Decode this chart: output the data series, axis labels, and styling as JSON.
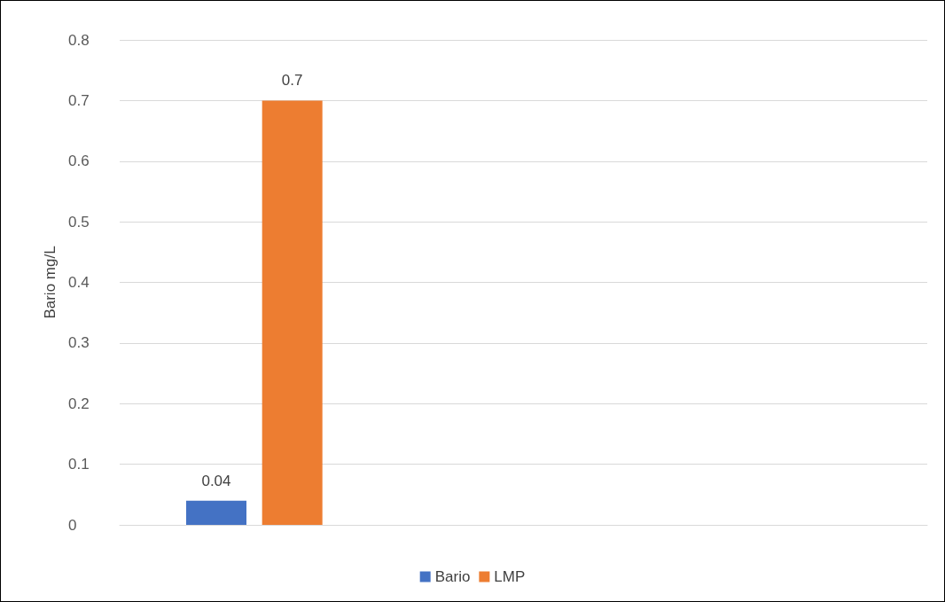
{
  "chart_data": {
    "type": "bar",
    "ylabel": "Bario mg/L",
    "categories": [
      null,
      null,
      null
    ],
    "series": [
      {
        "name": "Bario",
        "color": "#4472c4",
        "values": [
          0.04,
          null,
          null
        ]
      },
      {
        "name": "LMP",
        "color": "#ed7d31",
        "values": [
          0.7,
          null,
          null
        ]
      }
    ],
    "ylim": [
      0,
      0.8
    ],
    "yticks": [
      0,
      0.1,
      0.2,
      0.3,
      0.4,
      0.5,
      0.6,
      0.7,
      0.8
    ],
    "grid": "y",
    "legend": "bottom",
    "data_labels": true
  }
}
